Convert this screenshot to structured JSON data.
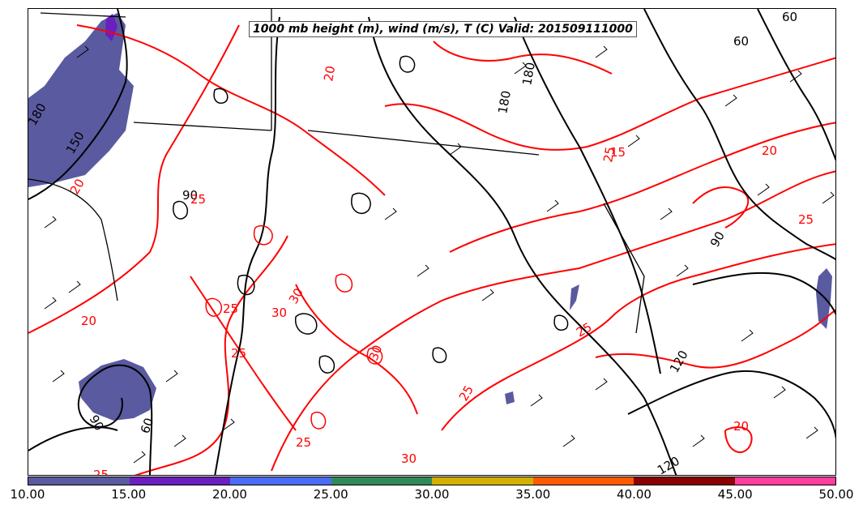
{
  "title": "1000 mb height (m), wind (m/s), T (C) Valid: 201509111000",
  "colorbar": {
    "labels": [
      "10.00",
      "15.00",
      "20.00",
      "25.00",
      "30.00",
      "35.00",
      "40.00",
      "45.00",
      "50.00"
    ],
    "colors": [
      "#5a5aa0",
      "#6a1fbf",
      "#4a6cf7",
      "#2e8b57",
      "#d4b000",
      "#ff5a00",
      "#8b0000",
      "#ff3ca0"
    ]
  },
  "contours": {
    "height_labels": [
      "180",
      "150",
      "90",
      "60",
      "90",
      "180",
      "90",
      "60",
      "120",
      "120",
      "60",
      "180"
    ],
    "temperature_labels": [
      "20",
      "20",
      "25",
      "30",
      "30",
      "25",
      "25",
      "25",
      "20",
      "25",
      "15",
      "25",
      "20",
      "25",
      "30",
      "20",
      "25",
      "25",
      "30"
    ]
  },
  "colors": {
    "height": "#000000",
    "temperature": "#ff0000",
    "shading": "#5a5aa0"
  }
}
